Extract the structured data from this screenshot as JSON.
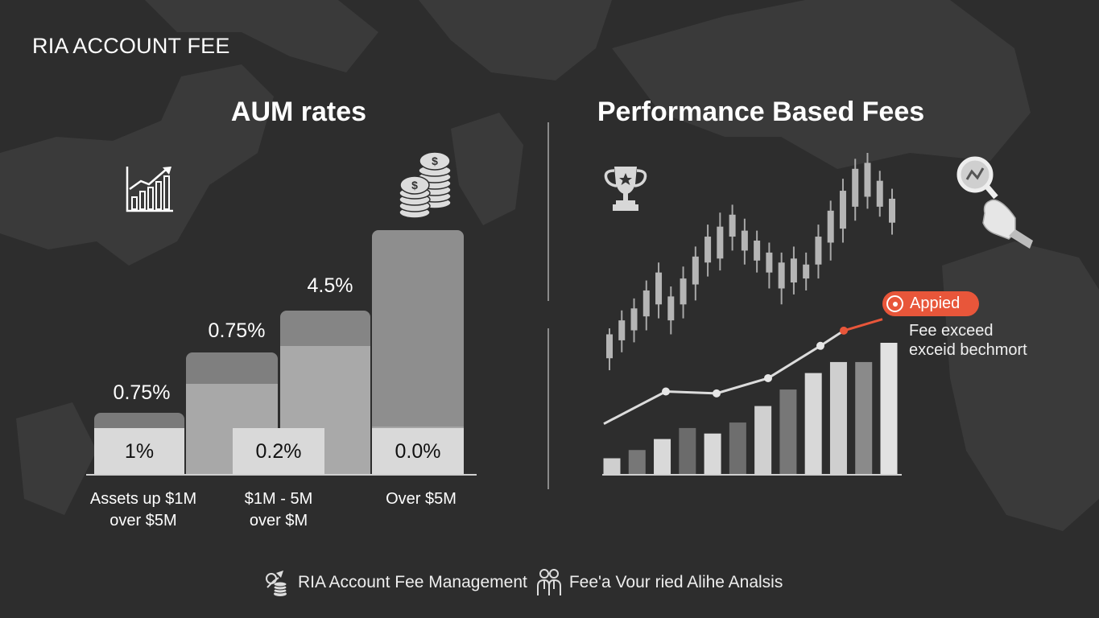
{
  "title": "RIA ACCOUNT FEE",
  "left_panel": {
    "heading": "AUM rates",
    "icons": [
      "growth-chart-icon",
      "coin-stack-icon"
    ]
  },
  "right_panel": {
    "heading": "Performance Based Fees",
    "icons": [
      "trophy-icon",
      "magnifier-hand-icon"
    ],
    "badge": "Appied",
    "note_line1": "Fee exceed",
    "note_line2": "exceid bechmort",
    "accent_color": "#e8563a"
  },
  "footer": {
    "item1": "RIA Account Fee Management",
    "item2": "Fee'a Vour ried Alihe Analsis",
    "icons": [
      "coin-growth-icon",
      "people-icon"
    ]
  },
  "chart_data": [
    {
      "type": "bar",
      "title": "AUM rates",
      "bars": [
        {
          "top_label": "0.75%",
          "box_label": "1%",
          "category": "Assets up $1M\nover $5M"
        },
        {
          "top_label": "0.75%",
          "box_label": "0.2%",
          "category": "$1M - 5M\nover $M"
        },
        {
          "top_label": "4.5%",
          "box_label": "",
          "category": ""
        },
        {
          "top_label": "",
          "box_label": "0.0%",
          "category": "Over $5M"
        }
      ],
      "grid": false
    },
    {
      "type": "line",
      "title": "Performance Based Fees",
      "candles": [
        {
          "open": 3.5,
          "close": 4.7,
          "low": 2.9,
          "high": 5.0
        },
        {
          "open": 4.4,
          "close": 5.4,
          "low": 3.8,
          "high": 5.9
        },
        {
          "open": 4.9,
          "close": 6.0,
          "low": 4.3,
          "high": 6.5
        },
        {
          "open": 5.6,
          "close": 6.9,
          "low": 4.9,
          "high": 7.4
        },
        {
          "open": 6.2,
          "close": 7.8,
          "low": 5.5,
          "high": 8.3
        },
        {
          "open": 5.4,
          "close": 6.6,
          "low": 4.7,
          "high": 7.1
        },
        {
          "open": 6.2,
          "close": 7.5,
          "low": 5.5,
          "high": 8.1
        },
        {
          "open": 7.2,
          "close": 8.6,
          "low": 6.4,
          "high": 9.1
        },
        {
          "open": 8.3,
          "close": 9.6,
          "low": 7.6,
          "high": 10.2
        },
        {
          "open": 8.5,
          "close": 10.1,
          "low": 7.9,
          "high": 10.8
        },
        {
          "open": 9.6,
          "close": 10.7,
          "low": 8.9,
          "high": 11.2
        },
        {
          "open": 8.9,
          "close": 9.9,
          "low": 8.2,
          "high": 10.5
        },
        {
          "open": 8.4,
          "close": 9.4,
          "low": 7.8,
          "high": 9.9
        },
        {
          "open": 7.8,
          "close": 8.8,
          "low": 7.0,
          "high": 9.3
        },
        {
          "open": 7.0,
          "close": 8.3,
          "low": 6.2,
          "high": 8.8
        },
        {
          "open": 7.3,
          "close": 8.5,
          "low": 6.7,
          "high": 9.1
        },
        {
          "open": 7.5,
          "close": 8.2,
          "low": 6.9,
          "high": 8.8
        },
        {
          "open": 8.2,
          "close": 9.6,
          "low": 7.5,
          "high": 10.2
        },
        {
          "open": 9.3,
          "close": 10.9,
          "low": 8.4,
          "high": 11.4
        },
        {
          "open": 10.0,
          "close": 11.9,
          "low": 9.3,
          "high": 12.5
        },
        {
          "open": 11.1,
          "close": 13.0,
          "low": 10.4,
          "high": 13.5
        },
        {
          "open": 11.6,
          "close": 13.3,
          "low": 11.0,
          "high": 13.8
        },
        {
          "open": 11.1,
          "close": 12.4,
          "low": 10.6,
          "high": 12.9
        },
        {
          "open": 10.3,
          "close": 11.5,
          "low": 9.7,
          "high": 12.0
        }
      ],
      "line": [
        1.2,
        2.9,
        2.8,
        3.6,
        5.3,
        6.1,
        6.7
      ],
      "bars": [
        0.6,
        0.9,
        1.3,
        1.7,
        1.5,
        1.9,
        2.5,
        3.1,
        3.7,
        4.1,
        4.1,
        4.8
      ],
      "highlight_point": 5,
      "grid": false
    }
  ]
}
